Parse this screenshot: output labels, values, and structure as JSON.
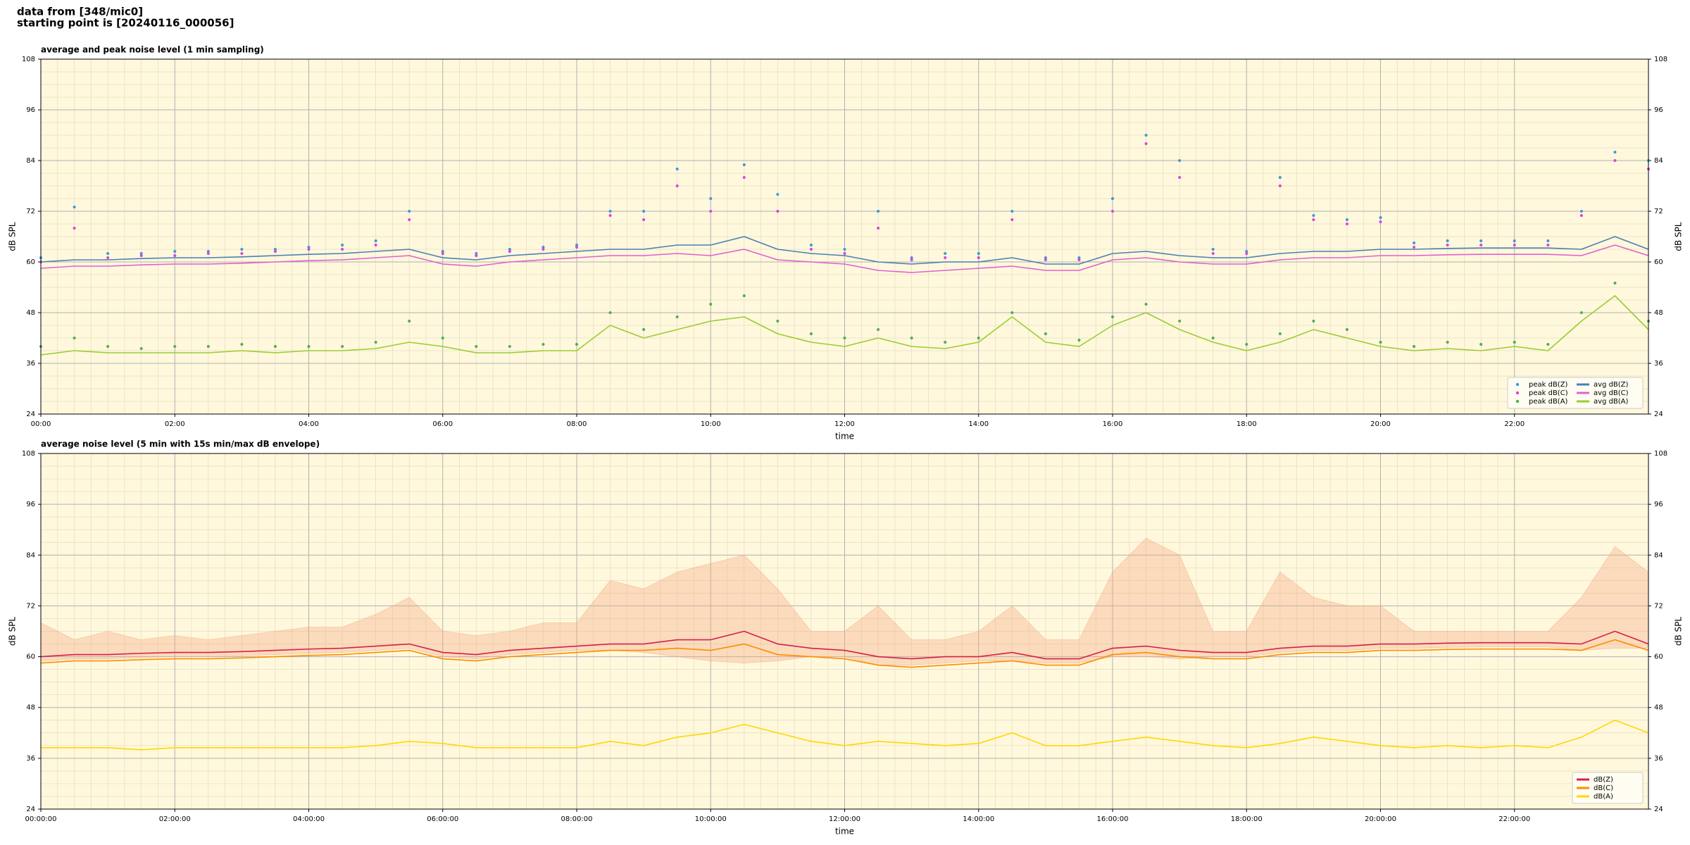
{
  "header": [
    "data from [348/mic0]",
    "starting point is [20240116_000056]"
  ],
  "chart_data": [
    {
      "type": "line",
      "title": "average and peak noise level (1 min sampling)",
      "xlabel": "time",
      "ylabel": "dB SPL",
      "xlim": [
        0,
        24
      ],
      "ylim": [
        24,
        108
      ],
      "yticks": [
        24,
        36,
        48,
        60,
        72,
        84,
        96,
        108
      ],
      "xticks": [
        {
          "value": 0,
          "label": "00:00"
        },
        {
          "value": 2,
          "label": "02:00"
        },
        {
          "value": 4,
          "label": "04:00"
        },
        {
          "value": 6,
          "label": "06:00"
        },
        {
          "value": 8,
          "label": "08:00"
        },
        {
          "value": 10,
          "label": "10:00"
        },
        {
          "value": 12,
          "label": "12:00"
        },
        {
          "value": 14,
          "label": "14:00"
        },
        {
          "value": 16,
          "label": "16:00"
        },
        {
          "value": 18,
          "label": "18:00"
        },
        {
          "value": 20,
          "label": "20:00"
        },
        {
          "value": 22,
          "label": "22:00"
        }
      ],
      "grid": true,
      "background": "#fff8dc",
      "legend": "lower right",
      "x": [
        0,
        0.5,
        1,
        1.5,
        2,
        2.5,
        3,
        3.5,
        4,
        4.5,
        5,
        5.5,
        6,
        6.5,
        7,
        7.5,
        8,
        8.5,
        9,
        9.5,
        10,
        10.5,
        11,
        11.5,
        12,
        12.5,
        13,
        13.5,
        14,
        14.5,
        15,
        15.5,
        16,
        16.5,
        17,
        17.5,
        18,
        18.5,
        19,
        19.5,
        20,
        20.5,
        21,
        21.5,
        22,
        22.5,
        23,
        23.5,
        24
      ],
      "series": [
        {
          "name": "peak dB(Z)",
          "type": "scatter",
          "color": "#3a9ad9",
          "values": [
            61,
            73,
            62,
            62,
            62.5,
            62.5,
            63,
            63,
            63.5,
            64,
            65,
            72,
            62.5,
            62,
            63,
            63.5,
            64,
            72,
            72,
            82,
            75,
            83,
            76,
            64,
            63,
            72,
            61,
            62,
            62,
            72,
            61,
            61,
            75,
            90,
            84,
            63,
            62.5,
            80,
            71,
            70,
            70.5,
            64.5,
            65,
            65,
            65,
            65,
            72,
            86,
            84
          ]
        },
        {
          "name": "peak dB(C)",
          "type": "scatter",
          "color": "#e040e0",
          "values": [
            60,
            68,
            61,
            61.5,
            61.5,
            62,
            62,
            62.5,
            63,
            63,
            64,
            70,
            62,
            61.5,
            62.5,
            63,
            63.5,
            71,
            70,
            78,
            72,
            80,
            72,
            63,
            62,
            68,
            60.5,
            61,
            61,
            70,
            60.5,
            60.5,
            72,
            88,
            80,
            62,
            62,
            78,
            70,
            69,
            69.5,
            63.5,
            64,
            64,
            64,
            64,
            71,
            84,
            82
          ]
        },
        {
          "name": "peak dB(A)",
          "type": "scatter",
          "color": "#4caf50",
          "values": [
            40,
            42,
            40,
            39.5,
            40,
            40,
            40.5,
            40,
            40,
            40,
            41,
            46,
            42,
            40,
            40,
            40.5,
            40.5,
            48,
            44,
            47,
            50,
            52,
            46,
            43,
            42,
            44,
            42,
            41,
            42,
            48,
            43,
            41.5,
            47,
            50,
            46,
            42,
            40.5,
            43,
            46,
            44,
            41,
            40,
            41,
            40.5,
            41,
            40.5,
            48,
            55,
            46
          ]
        },
        {
          "name": "avg dB(Z)",
          "type": "line",
          "color": "#4a7fb5",
          "values": [
            60,
            60.5,
            60.5,
            60.8,
            61,
            61,
            61.2,
            61.5,
            61.8,
            62,
            62.5,
            63,
            61,
            60.5,
            61.5,
            62,
            62.5,
            63,
            63,
            64,
            64,
            66,
            63,
            62,
            61.5,
            60,
            59.5,
            60,
            60,
            61,
            59.5,
            59.5,
            62,
            62.5,
            61.5,
            61,
            61,
            62,
            62.5,
            62.5,
            63,
            63,
            63.2,
            63.3,
            63.3,
            63.3,
            63,
            66,
            63
          ]
        },
        {
          "name": "avg dB(C)",
          "type": "line",
          "color": "#e060d0",
          "values": [
            58.5,
            59,
            59,
            59.3,
            59.5,
            59.5,
            59.7,
            60,
            60.3,
            60.5,
            61,
            61.5,
            59.5,
            59,
            60,
            60.5,
            61,
            61.5,
            61.5,
            62,
            61.5,
            63,
            60.5,
            60,
            59.5,
            58,
            57.5,
            58,
            58.5,
            59,
            58,
            58,
            60.5,
            61,
            60,
            59.5,
            59.5,
            60.5,
            61,
            61,
            61.5,
            61.5,
            61.7,
            61.8,
            61.8,
            61.8,
            61.5,
            64,
            61.5
          ]
        },
        {
          "name": "avg dB(A)",
          "type": "line",
          "color": "#9acd32",
          "values": [
            38,
            39,
            38.5,
            38.5,
            38.5,
            38.5,
            39,
            38.5,
            39,
            39,
            39.5,
            41,
            40,
            38.5,
            38.5,
            39,
            39,
            45,
            42,
            44,
            46,
            47,
            43,
            41,
            40,
            42,
            40,
            39.5,
            41,
            47,
            41,
            40,
            45,
            48,
            44,
            41,
            39,
            41,
            44,
            42,
            40,
            39,
            39.5,
            39,
            40,
            39,
            46,
            52,
            44
          ]
        }
      ]
    },
    {
      "type": "line",
      "title": "average noise level (5 min with 15s min/max dB envelope)",
      "xlabel": "time",
      "ylabel": "dB SPL",
      "xlim": [
        0,
        24
      ],
      "ylim": [
        24,
        108
      ],
      "yticks": [
        24,
        36,
        48,
        60,
        72,
        84,
        96,
        108
      ],
      "xticks": [
        {
          "value": 0,
          "label": "00:00:00"
        },
        {
          "value": 2,
          "label": "02:00:00"
        },
        {
          "value": 4,
          "label": "04:00:00"
        },
        {
          "value": 6,
          "label": "06:00:00"
        },
        {
          "value": 8,
          "label": "08:00:00"
        },
        {
          "value": 10,
          "label": "10:00:00"
        },
        {
          "value": 12,
          "label": "12:00:00"
        },
        {
          "value": 14,
          "label": "14:00:00"
        },
        {
          "value": 16,
          "label": "16:00:00"
        },
        {
          "value": 18,
          "label": "18:00:00"
        },
        {
          "value": 20,
          "label": "20:00:00"
        },
        {
          "value": 22,
          "label": "22:00:00"
        }
      ],
      "grid": true,
      "background": "#fff8dc",
      "legend": "lower right",
      "x": [
        0,
        0.5,
        1,
        1.5,
        2,
        2.5,
        3,
        3.5,
        4,
        4.5,
        5,
        5.5,
        6,
        6.5,
        7,
        7.5,
        8,
        8.5,
        9,
        9.5,
        10,
        10.5,
        11,
        11.5,
        12,
        12.5,
        13,
        13.5,
        14,
        14.5,
        15,
        15.5,
        16,
        16.5,
        17,
        17.5,
        18,
        18.5,
        19,
        19.5,
        20,
        20.5,
        21,
        21.5,
        22,
        22.5,
        23,
        23.5,
        24
      ],
      "envelope": {
        "color": "#f4a582",
        "upper": [
          68,
          64,
          66,
          64,
          65,
          64,
          65,
          66,
          67,
          67,
          70,
          74,
          66,
          65,
          66,
          68,
          68,
          78,
          76,
          80,
          82,
          84,
          76,
          66,
          66,
          72,
          64,
          64,
          66,
          72,
          64,
          64,
          80,
          88,
          84,
          66,
          66,
          80,
          74,
          72,
          72,
          66,
          66,
          66,
          66,
          66,
          74,
          86,
          80
        ],
        "lower": [
          59,
          59.5,
          59.5,
          59.8,
          60,
          60,
          60.2,
          60.5,
          60.8,
          61,
          61.5,
          62,
          60,
          59.5,
          60.5,
          61,
          61.5,
          61.5,
          61,
          60,
          59,
          58.5,
          59,
          60,
          60,
          58,
          58,
          58.5,
          59,
          59,
          58.5,
          58.5,
          60,
          60,
          59.5,
          60,
          60,
          61,
          61.5,
          61.5,
          62,
          62,
          62.2,
          62.3,
          62.3,
          62.3,
          61.5,
          62,
          62
        ]
      },
      "series": [
        {
          "name": "dB(Z)",
          "type": "line",
          "color": "#d61f4a",
          "values": [
            60,
            60.5,
            60.5,
            60.8,
            61,
            61,
            61.2,
            61.5,
            61.8,
            62,
            62.5,
            63,
            61,
            60.5,
            61.5,
            62,
            62.5,
            63,
            63,
            64,
            64,
            66,
            63,
            62,
            61.5,
            60,
            59.5,
            60,
            60,
            61,
            59.5,
            59.5,
            62,
            62.5,
            61.5,
            61,
            61,
            62,
            62.5,
            62.5,
            63,
            63,
            63.2,
            63.3,
            63.3,
            63.3,
            63,
            66,
            63
          ]
        },
        {
          "name": "dB(C)",
          "type": "line",
          "color": "#ff8c00",
          "values": [
            58.5,
            59,
            59,
            59.3,
            59.5,
            59.5,
            59.7,
            60,
            60.3,
            60.5,
            61,
            61.5,
            59.5,
            59,
            60,
            60.5,
            61,
            61.5,
            61.5,
            62,
            61.5,
            63,
            60.5,
            60,
            59.5,
            58,
            57.5,
            58,
            58.5,
            59,
            58,
            58,
            60.5,
            61,
            60,
            59.5,
            59.5,
            60.5,
            61,
            61,
            61.5,
            61.5,
            61.7,
            61.8,
            61.8,
            61.8,
            61.5,
            64,
            61.5
          ]
        },
        {
          "name": "dB(A)",
          "type": "line",
          "color": "#ffd700",
          "values": [
            38.5,
            38.5,
            38.5,
            38,
            38.5,
            38.5,
            38.5,
            38.5,
            38.5,
            38.5,
            39,
            40,
            39.5,
            38.5,
            38.5,
            38.5,
            38.5,
            40,
            39,
            41,
            42,
            44,
            42,
            40,
            39,
            40,
            39.5,
            39,
            39.5,
            42,
            39,
            39,
            40,
            41,
            40,
            39,
            38.5,
            39.5,
            41,
            40,
            39,
            38.5,
            39,
            38.5,
            39,
            38.5,
            41,
            45,
            42
          ]
        }
      ]
    }
  ]
}
